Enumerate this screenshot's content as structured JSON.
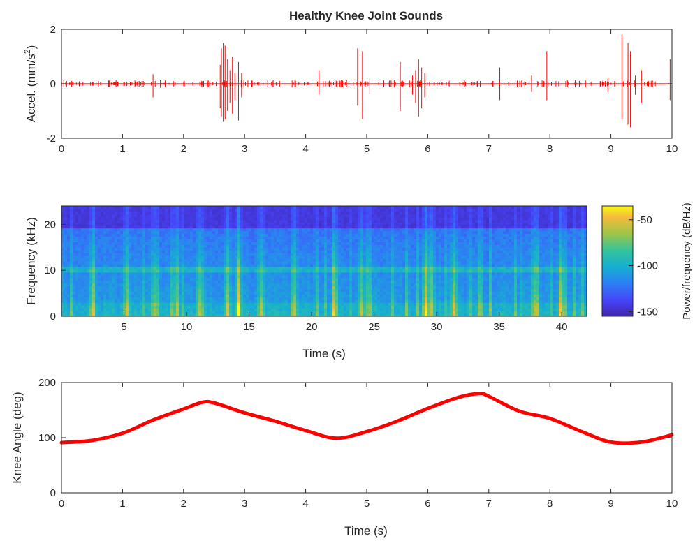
{
  "chart_data": [
    {
      "type": "line",
      "title": "Healthy Knee Joint Sounds",
      "xlabel": "",
      "ylabel": "Accel. (mm/s²)",
      "ylabel_main": "Accel. (mm/s",
      "ylabel_sup": "2",
      "ylabel_close": ")",
      "xlim": [
        0,
        10
      ],
      "ylim": [
        -2,
        2
      ],
      "xticks": [
        "0",
        "1",
        "2",
        "3",
        "4",
        "5",
        "6",
        "7",
        "8",
        "9",
        "10"
      ],
      "yticks": [
        "-2",
        "0",
        "2"
      ],
      "color": "#ff0000",
      "spikes": [
        {
          "x": 1.5,
          "lo": -0.5,
          "hi": 0.35
        },
        {
          "x": 1.62,
          "lo": -0.15,
          "hi": 0.15
        },
        {
          "x": 2.6,
          "lo": -0.9,
          "hi": 0.7
        },
        {
          "x": 2.62,
          "lo": -1.2,
          "hi": 1.3
        },
        {
          "x": 2.65,
          "lo": -1.4,
          "hi": 1.5
        },
        {
          "x": 2.68,
          "lo": -1.3,
          "hi": 1.4
        },
        {
          "x": 2.72,
          "lo": -1.0,
          "hi": 0.9
        },
        {
          "x": 2.76,
          "lo": -0.7,
          "hi": 0.5
        },
        {
          "x": 2.8,
          "lo": -1.1,
          "hi": 1.0
        },
        {
          "x": 2.84,
          "lo": -0.6,
          "hi": 0.4
        },
        {
          "x": 2.9,
          "lo": -1.35,
          "hi": 0.8
        },
        {
          "x": 2.95,
          "lo": -0.5,
          "hi": 0.4
        },
        {
          "x": 4.22,
          "lo": -0.4,
          "hi": 0.5
        },
        {
          "x": 4.85,
          "lo": -0.8,
          "hi": 1.3
        },
        {
          "x": 4.93,
          "lo": -1.3,
          "hi": 1.2
        },
        {
          "x": 5.05,
          "lo": -0.4,
          "hi": 0.2
        },
        {
          "x": 5.55,
          "lo": -1.0,
          "hi": 0.8
        },
        {
          "x": 5.75,
          "lo": -0.4,
          "hi": 0.3
        },
        {
          "x": 5.8,
          "lo": -0.7,
          "hi": 0.5
        },
        {
          "x": 5.85,
          "lo": -1.2,
          "hi": 0.9
        },
        {
          "x": 5.9,
          "lo": -0.9,
          "hi": 0.6
        },
        {
          "x": 5.95,
          "lo": -0.5,
          "hi": 0.4
        },
        {
          "x": 7.18,
          "lo": -0.6,
          "hi": 0.6
        },
        {
          "x": 7.7,
          "lo": -0.3,
          "hi": 0.3
        },
        {
          "x": 7.95,
          "lo": -0.6,
          "hi": 1.2
        },
        {
          "x": 8.95,
          "lo": -0.3,
          "hi": 0.2
        },
        {
          "x": 9.18,
          "lo": -1.3,
          "hi": 1.8
        },
        {
          "x": 9.28,
          "lo": -1.5,
          "hi": 1.5
        },
        {
          "x": 9.32,
          "lo": -1.6,
          "hi": 1.2
        },
        {
          "x": 9.4,
          "lo": -0.4,
          "hi": 0.3
        },
        {
          "x": 9.5,
          "lo": -0.7,
          "hi": 0.5
        },
        {
          "x": 9.97,
          "lo": -0.6,
          "hi": 0.9
        }
      ]
    },
    {
      "type": "heatmap",
      "title": "",
      "xlabel": "Time (s)",
      "ylabel": "Frequency (kHz)",
      "xlim": [
        0,
        42
      ],
      "ylim": [
        0,
        24
      ],
      "xticks": [
        "5",
        "10",
        "15",
        "20",
        "25",
        "30",
        "35",
        "40"
      ],
      "yticks": [
        "0",
        "10",
        "20"
      ],
      "colorbar_label": "Power/frequency (dB/Hz)",
      "colorbar_ticks": [
        "-50",
        "-100",
        "-150"
      ],
      "color_range": [
        -155,
        -35
      ],
      "colormap": [
        "#3e26a8",
        "#4743f8",
        "#2d80f4",
        "#16afd0",
        "#35c49a",
        "#a0c546",
        "#f6ba3c",
        "#f9fb15"
      ]
    },
    {
      "type": "line",
      "title": "",
      "xlabel": "Time (s)",
      "ylabel": "Knee Angle (deg)",
      "xlim": [
        0,
        10
      ],
      "ylim": [
        0,
        200
      ],
      "xticks": [
        "0",
        "1",
        "2",
        "3",
        "4",
        "5",
        "6",
        "7",
        "8",
        "9",
        "10"
      ],
      "yticks": [
        "0",
        "100",
        "200"
      ],
      "color": "#ff0000",
      "x": [
        0,
        0.5,
        1.0,
        1.5,
        2.0,
        2.3,
        2.5,
        3.0,
        3.5,
        4.0,
        4.5,
        5.0,
        5.5,
        6.0,
        6.5,
        6.85,
        7.0,
        7.5,
        8.0,
        8.5,
        9.0,
        9.5,
        10.0
      ],
      "y": [
        91,
        95,
        108,
        132,
        152,
        164,
        163,
        145,
        130,
        113,
        99,
        111,
        130,
        153,
        173,
        180,
        175,
        148,
        135,
        112,
        92,
        92,
        105
      ]
    }
  ]
}
